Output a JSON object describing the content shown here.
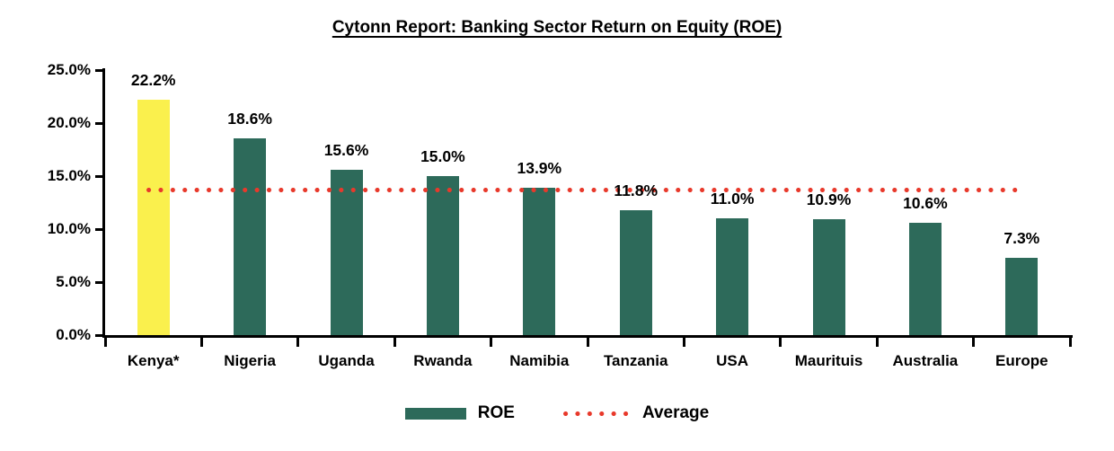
{
  "title": "Cytonn Report: Banking Sector Return on Equity (ROE)",
  "chart_data": {
    "type": "bar",
    "title": "Cytonn Report: Banking Sector Return on Equity (ROE)",
    "categories": [
      "Kenya*",
      "Nigeria",
      "Uganda",
      "Rwanda",
      "Namibia",
      "Tanzania",
      "USA",
      "Maurituis",
      "Australia",
      "Europe"
    ],
    "series": [
      {
        "name": "ROE",
        "values": [
          22.2,
          18.6,
          15.6,
          15.0,
          13.9,
          11.8,
          11.0,
          10.9,
          10.6,
          7.3
        ]
      }
    ],
    "data_labels": [
      "22.2%",
      "18.6%",
      "15.6%",
      "15.0%",
      "13.9%",
      "11.8%",
      "11.0%",
      "10.9%",
      "10.6%",
      "7.3%"
    ],
    "average_line": {
      "name": "Average",
      "value": 13.7
    },
    "y_ticks": [
      {
        "label": "25.0%",
        "value": 25
      },
      {
        "label": "20.0%",
        "value": 20
      },
      {
        "label": "15.0%",
        "value": 15
      },
      {
        "label": "10.0%",
        "value": 10
      },
      {
        "label": "5.0%",
        "value": 5
      },
      {
        "label": "0.0%",
        "value": 0
      }
    ],
    "ylim": [
      0,
      25
    ],
    "xlabel": "",
    "ylabel": "",
    "grid": false,
    "legend": [
      {
        "label": "ROE",
        "marker": "bar-swatch"
      },
      {
        "label": "Average",
        "marker": "dotted-line"
      }
    ],
    "colors": {
      "bar": "#2D6A5A",
      "highlight_bar": "#FAF04D",
      "highlight_index": 0,
      "average_line": "#E8392B",
      "axis": "#000000",
      "text": "#000000"
    }
  }
}
